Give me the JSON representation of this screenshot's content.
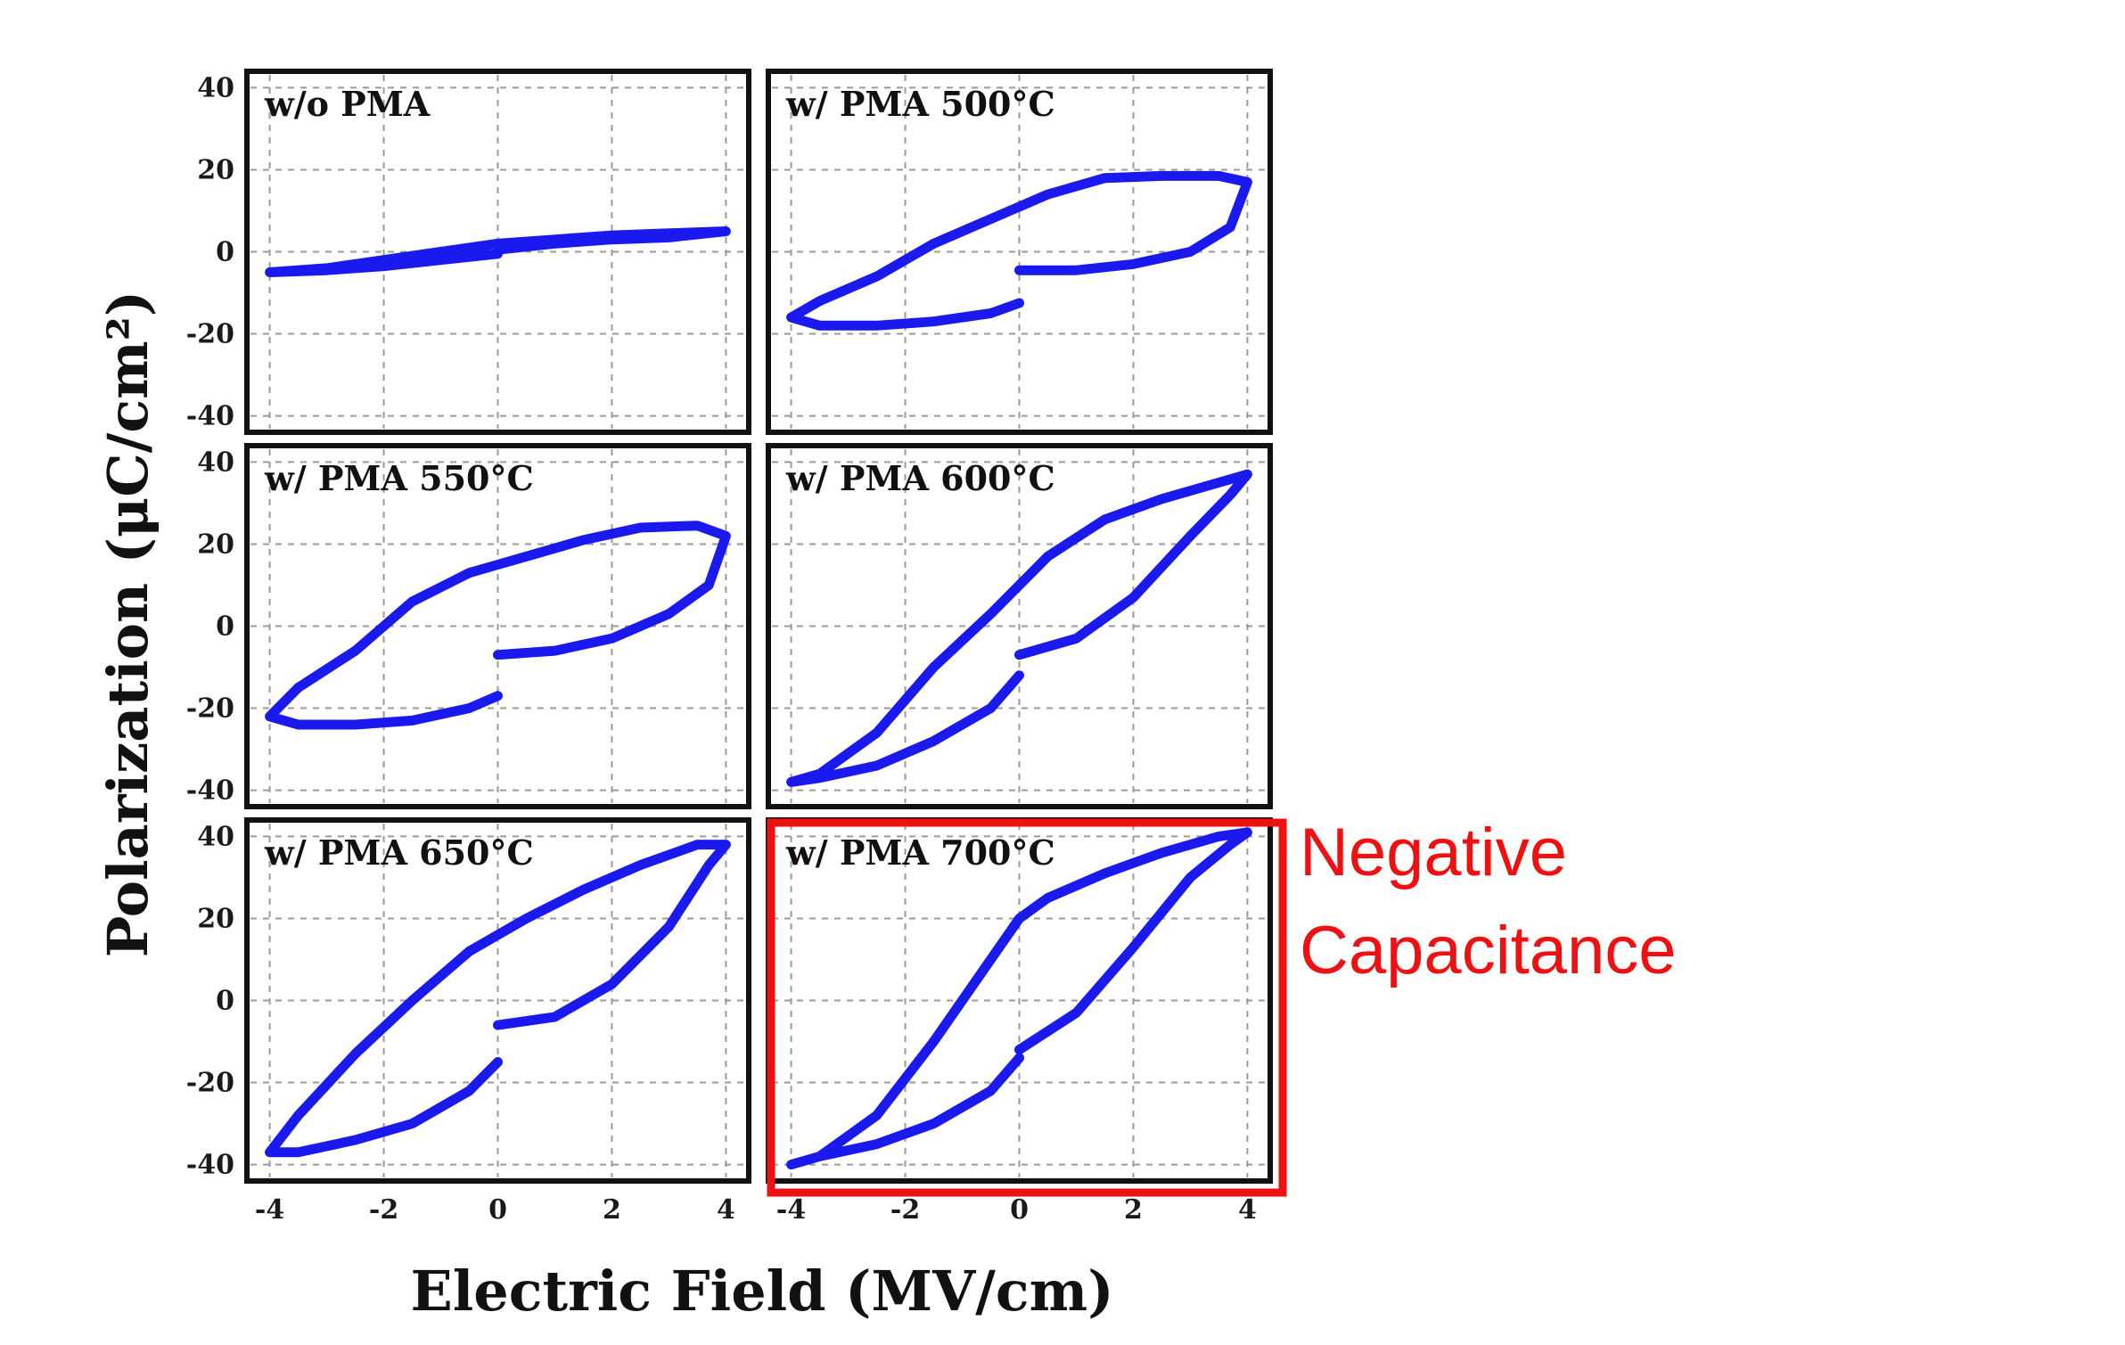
{
  "chart_data": {
    "type": "line",
    "xlabel": "Electric Field (MV/cm)",
    "ylabel": "Polarization (μC/cm²)",
    "xlim": [
      -4.4,
      4.4
    ],
    "ylim": [
      -44,
      44
    ],
    "x_ticks": [
      "-4",
      "-2",
      "0",
      "2",
      "4"
    ],
    "y_ticks": [
      "40",
      "20",
      "0",
      "-20",
      "-40"
    ],
    "grid": true,
    "layout": "3x2 grid of panels",
    "annotation": {
      "text_lines": [
        "Negative",
        "Capacitance"
      ],
      "target_panel": "w/ PMA 700°C",
      "color": "#ee1111"
    },
    "series_color": "#1a1aee",
    "panels": [
      {
        "label": "w/o PMA",
        "x": [
          0,
          1,
          2,
          3,
          4,
          3,
          2,
          1,
          0,
          -1,
          -2,
          -3,
          -4,
          -3,
          -2,
          -1,
          0
        ],
        "y": [
          0.5,
          2,
          3,
          3.5,
          5,
          4.5,
          4,
          3,
          2,
          0,
          -2,
          -4,
          -5,
          -4.5,
          -3.5,
          -2,
          -0.5
        ]
      },
      {
        "label": "w/ PMA 500°C",
        "x": [
          0,
          1,
          2,
          3,
          3.7,
          4,
          3.5,
          2.5,
          1.5,
          0.5,
          0,
          -0.5,
          -1.5,
          -2.5,
          -3.5,
          -4,
          -3.5,
          -2.5,
          -1.5,
          -0.5,
          0
        ],
        "y": [
          -4.5,
          -4.5,
          -3,
          0,
          6,
          17,
          18.5,
          18.5,
          18,
          14,
          11,
          8,
          2,
          -6,
          -12,
          -16,
          -18,
          -18,
          -17,
          -15,
          -12.5
        ]
      },
      {
        "label": "w/ PMA 550°C",
        "x": [
          0,
          1,
          2,
          3,
          3.7,
          4,
          3.5,
          2.5,
          1.5,
          0.5,
          0,
          -0.5,
          -1.5,
          -2.5,
          -3.5,
          -4,
          -3.5,
          -2.5,
          -1.5,
          -0.5,
          0
        ],
        "y": [
          -7,
          -6,
          -3,
          3,
          10,
          22,
          24.5,
          24,
          21,
          17,
          15,
          13,
          6,
          -6,
          -15,
          -22,
          -24,
          -24,
          -23,
          -20,
          -17
        ]
      },
      {
        "label": "w/ PMA 600°C",
        "x": [
          0,
          1,
          2,
          3,
          3.7,
          4,
          3.5,
          2.5,
          1.5,
          0.5,
          0,
          -0.5,
          -1.5,
          -2.5,
          -3.5,
          -4,
          -3.5,
          -2.5,
          -1.5,
          -0.5,
          0
        ],
        "y": [
          -7,
          -3,
          7,
          22,
          32,
          37,
          35,
          31,
          26,
          17,
          10,
          3,
          -10,
          -26,
          -36,
          -38,
          -37,
          -34,
          -28,
          -20,
          -12
        ]
      },
      {
        "label": "w/ PMA 650°C",
        "x": [
          0,
          1,
          2,
          3,
          3.7,
          4,
          3.5,
          2.5,
          1.5,
          0.5,
          0,
          -0.5,
          -1.5,
          -2.5,
          -3.5,
          -4,
          -3.5,
          -2.5,
          -1.5,
          -0.5,
          0
        ],
        "y": [
          -6,
          -4,
          4,
          18,
          33,
          38,
          38,
          33,
          27,
          20,
          16,
          12,
          0,
          -13,
          -28,
          -37,
          -37,
          -34,
          -30,
          -22,
          -15
        ]
      },
      {
        "label": "w/ PMA 700°C",
        "x": [
          0,
          1,
          2,
          3,
          3.7,
          4,
          3.5,
          2.5,
          1.5,
          0.5,
          0,
          -0.5,
          -1.5,
          -2.5,
          -3.5,
          -4,
          -3.5,
          -2.5,
          -1.5,
          -0.5,
          0
        ],
        "y": [
          -12,
          -3,
          13,
          30,
          38,
          41,
          40,
          36,
          31,
          25,
          20,
          10,
          -10,
          -28,
          -38,
          -40,
          -38,
          -35,
          -30,
          -22,
          -14
        ]
      }
    ]
  }
}
